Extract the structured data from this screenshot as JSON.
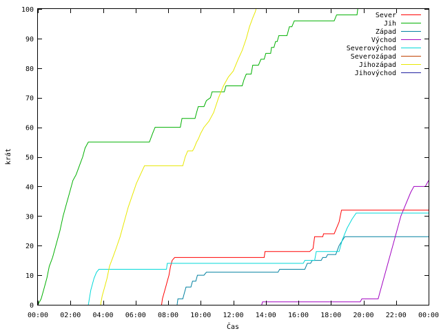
{
  "chart_data": {
    "type": "line",
    "title": "",
    "xlabel": "Čas",
    "ylabel": "krát",
    "xlim": [
      0,
      24
    ],
    "ylim": [
      0,
      100
    ],
    "x_ticks": [
      0,
      2,
      4,
      6,
      8,
      10,
      12,
      14,
      16,
      18,
      20,
      22,
      24
    ],
    "x_tick_labels": [
      "00:00",
      "02:00",
      "04:00",
      "06:00",
      "08:00",
      "10:00",
      "12:00",
      "14:00",
      "16:00",
      "18:00",
      "20:00",
      "22:00",
      "00:00"
    ],
    "y_ticks": [
      0,
      10,
      20,
      30,
      40,
      50,
      60,
      70,
      80,
      90,
      100
    ],
    "grid": false,
    "legend_position": "top-right",
    "series": [
      {
        "name": "Sever",
        "color": "#ff0000",
        "points": [
          [
            7.6,
            0
          ],
          [
            7.65,
            2
          ],
          [
            7.75,
            4
          ],
          [
            7.85,
            6
          ],
          [
            7.95,
            8
          ],
          [
            8.05,
            10
          ],
          [
            8.15,
            13
          ],
          [
            8.25,
            15
          ],
          [
            8.4,
            16
          ],
          [
            13.9,
            16
          ],
          [
            13.95,
            18
          ],
          [
            16.7,
            18
          ],
          [
            16.9,
            19
          ],
          [
            17.0,
            23
          ],
          [
            17.5,
            23
          ],
          [
            17.55,
            24
          ],
          [
            18.2,
            24
          ],
          [
            18.5,
            28
          ],
          [
            18.65,
            32
          ],
          [
            24,
            32
          ]
        ]
      },
      {
        "name": "Jih",
        "color": "#00b000",
        "points": [
          [
            0,
            0
          ],
          [
            0.2,
            2
          ],
          [
            0.35,
            5
          ],
          [
            0.55,
            9
          ],
          [
            0.7,
            13
          ],
          [
            0.9,
            16
          ],
          [
            1.1,
            20
          ],
          [
            1.35,
            25
          ],
          [
            1.55,
            30
          ],
          [
            1.75,
            34
          ],
          [
            1.95,
            38
          ],
          [
            2.15,
            42
          ],
          [
            2.35,
            44
          ],
          [
            2.55,
            47
          ],
          [
            2.75,
            50
          ],
          [
            2.9,
            53
          ],
          [
            3.1,
            55
          ],
          [
            6.85,
            55
          ],
          [
            7.05,
            58
          ],
          [
            7.2,
            60
          ],
          [
            8.75,
            60
          ],
          [
            8.85,
            63
          ],
          [
            9.65,
            63
          ],
          [
            9.75,
            65
          ],
          [
            9.85,
            67
          ],
          [
            10.2,
            67
          ],
          [
            10.35,
            69
          ],
          [
            10.6,
            70
          ],
          [
            10.7,
            72
          ],
          [
            11.45,
            72
          ],
          [
            11.55,
            74
          ],
          [
            12.55,
            74
          ],
          [
            12.65,
            76
          ],
          [
            12.8,
            78
          ],
          [
            13.1,
            78
          ],
          [
            13.2,
            81
          ],
          [
            13.55,
            81
          ],
          [
            13.7,
            83
          ],
          [
            13.9,
            83
          ],
          [
            14.0,
            85
          ],
          [
            14.3,
            85
          ],
          [
            14.35,
            87
          ],
          [
            14.5,
            87
          ],
          [
            14.6,
            89
          ],
          [
            14.7,
            89
          ],
          [
            14.8,
            91
          ],
          [
            15.3,
            91
          ],
          [
            15.45,
            94
          ],
          [
            15.6,
            94
          ],
          [
            15.75,
            96
          ],
          [
            18.2,
            96
          ],
          [
            18.35,
            98
          ],
          [
            19.6,
            98
          ],
          [
            19.65,
            100
          ]
        ]
      },
      {
        "name": "Západ",
        "color": "#0080a0",
        "points": [
          [
            8.55,
            0
          ],
          [
            8.6,
            2
          ],
          [
            8.9,
            2
          ],
          [
            9.0,
            4
          ],
          [
            9.1,
            6
          ],
          [
            9.4,
            6
          ],
          [
            9.5,
            8
          ],
          [
            9.7,
            8
          ],
          [
            9.8,
            10
          ],
          [
            10.2,
            10
          ],
          [
            10.35,
            11
          ],
          [
            14.75,
            11
          ],
          [
            14.85,
            12
          ],
          [
            16.4,
            12
          ],
          [
            16.55,
            14
          ],
          [
            16.75,
            14
          ],
          [
            16.85,
            15
          ],
          [
            17.4,
            15
          ],
          [
            17.5,
            16
          ],
          [
            17.7,
            16
          ],
          [
            17.8,
            17
          ],
          [
            18.3,
            17
          ],
          [
            18.5,
            20
          ],
          [
            18.85,
            23
          ],
          [
            24,
            23
          ]
        ]
      },
      {
        "name": "Východ",
        "color": "#a000c0",
        "points": [
          [
            13.75,
            0
          ],
          [
            13.8,
            1
          ],
          [
            19.8,
            1
          ],
          [
            19.9,
            2
          ],
          [
            20.9,
            2
          ],
          [
            21.0,
            4
          ],
          [
            21.3,
            10
          ],
          [
            21.6,
            16
          ],
          [
            21.9,
            22
          ],
          [
            22.3,
            30
          ],
          [
            22.6,
            34
          ],
          [
            22.9,
            38
          ],
          [
            23.1,
            40
          ],
          [
            23.8,
            40
          ],
          [
            24,
            42
          ]
        ]
      },
      {
        "name": "Severovýchod",
        "color": "#00d8d8",
        "points": [
          [
            3.1,
            0
          ],
          [
            3.25,
            5
          ],
          [
            3.45,
            9
          ],
          [
            3.6,
            11
          ],
          [
            3.75,
            12
          ],
          [
            7.9,
            12
          ],
          [
            7.95,
            14
          ],
          [
            16.3,
            14
          ],
          [
            16.4,
            15
          ],
          [
            17.0,
            15
          ],
          [
            17.1,
            18
          ],
          [
            18.5,
            18
          ],
          [
            18.7,
            22
          ],
          [
            19.0,
            26
          ],
          [
            19.3,
            29
          ],
          [
            19.55,
            31
          ],
          [
            24,
            31
          ]
        ]
      },
      {
        "name": "Severozápad",
        "color": "#c04000",
        "points": []
      },
      {
        "name": "Jihozápad",
        "color": "#e8e800",
        "points": [
          [
            3.85,
            0
          ],
          [
            3.95,
            3
          ],
          [
            4.1,
            6
          ],
          [
            4.25,
            9
          ],
          [
            4.4,
            13
          ],
          [
            4.6,
            16
          ],
          [
            4.8,
            19
          ],
          [
            5.05,
            23
          ],
          [
            5.3,
            28
          ],
          [
            5.55,
            33
          ],
          [
            5.8,
            37
          ],
          [
            6.05,
            41
          ],
          [
            6.3,
            44
          ],
          [
            6.55,
            47
          ],
          [
            8.9,
            47
          ],
          [
            9.05,
            50
          ],
          [
            9.2,
            52
          ],
          [
            9.5,
            52
          ],
          [
            9.6,
            53
          ],
          [
            9.75,
            55
          ],
          [
            9.85,
            56
          ],
          [
            10.0,
            58
          ],
          [
            10.2,
            60
          ],
          [
            10.5,
            62
          ],
          [
            10.8,
            65
          ],
          [
            11.1,
            70
          ],
          [
            11.4,
            74
          ],
          [
            11.7,
            77
          ],
          [
            12.0,
            79
          ],
          [
            12.3,
            83
          ],
          [
            12.55,
            86
          ],
          [
            12.8,
            90
          ],
          [
            13.0,
            94
          ],
          [
            13.2,
            97
          ],
          [
            13.35,
            99
          ],
          [
            13.4,
            100
          ]
        ]
      },
      {
        "name": "Jihovýchod",
        "color": "#2020a0",
        "points": []
      }
    ]
  }
}
